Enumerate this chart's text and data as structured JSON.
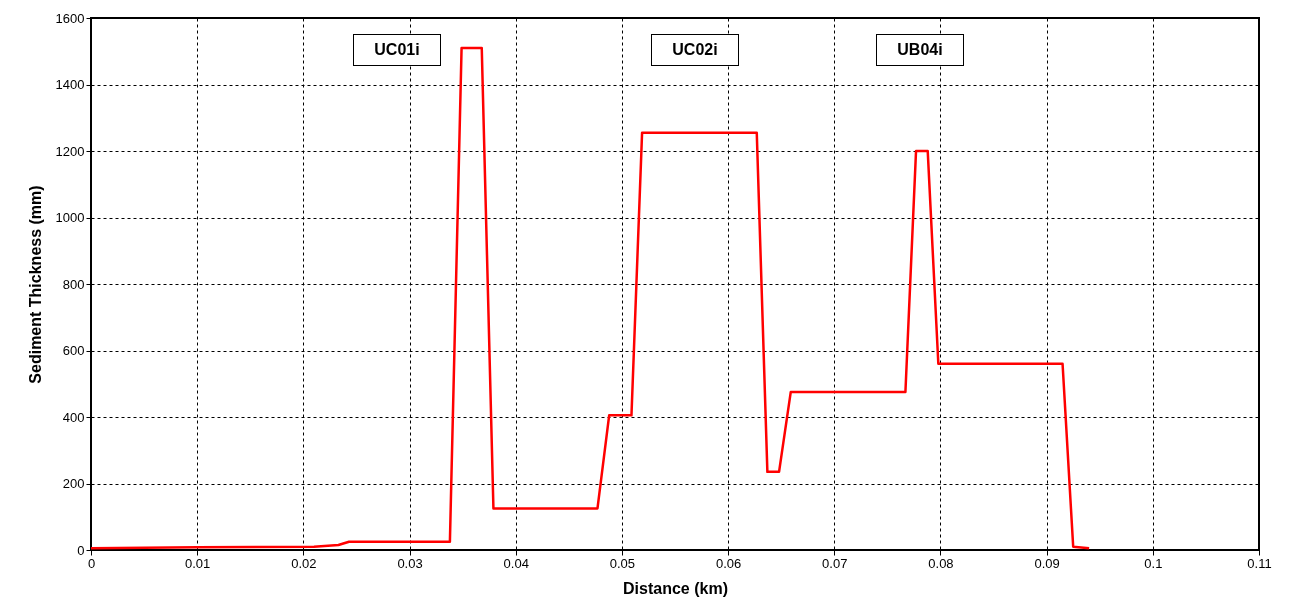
{
  "chart_data": {
    "type": "line",
    "xlabel": "Distance (km)",
    "ylabel": "Sediment Thickness (mm)",
    "x": [
      0,
      0.01,
      0.021,
      0.0233,
      0.0243,
      0.0338,
      0.0349,
      0.0368,
      0.0379,
      0.0477,
      0.0488,
      0.0509,
      0.0519,
      0.0627,
      0.0637,
      0.0648,
      0.0659,
      0.0767,
      0.0777,
      0.0788,
      0.0798,
      0.0915,
      0.0925,
      0.094
    ],
    "series": [
      {
        "color": "#ff0000",
        "values": [
          5,
          8,
          10,
          15,
          25,
          25,
          1510,
          1510,
          125,
          125,
          405,
          405,
          1255,
          1255,
          235,
          235,
          475,
          475,
          1200,
          1200,
          560,
          560,
          10,
          5
        ]
      }
    ],
    "xlim": [
      0,
      0.11
    ],
    "xticks": [
      0,
      0.01,
      0.02,
      0.03,
      0.04,
      0.05,
      0.06,
      0.07,
      0.08,
      0.09,
      0.1,
      0.11
    ],
    "ylim": [
      0,
      1600
    ],
    "yticks": [
      0,
      200,
      400,
      600,
      800,
      1000,
      1200,
      1400,
      1600
    ],
    "grid": true,
    "line_style": "solid",
    "marker": "none",
    "annotations": [
      "UC01i",
      "UC02i",
      "UB04i"
    ]
  }
}
